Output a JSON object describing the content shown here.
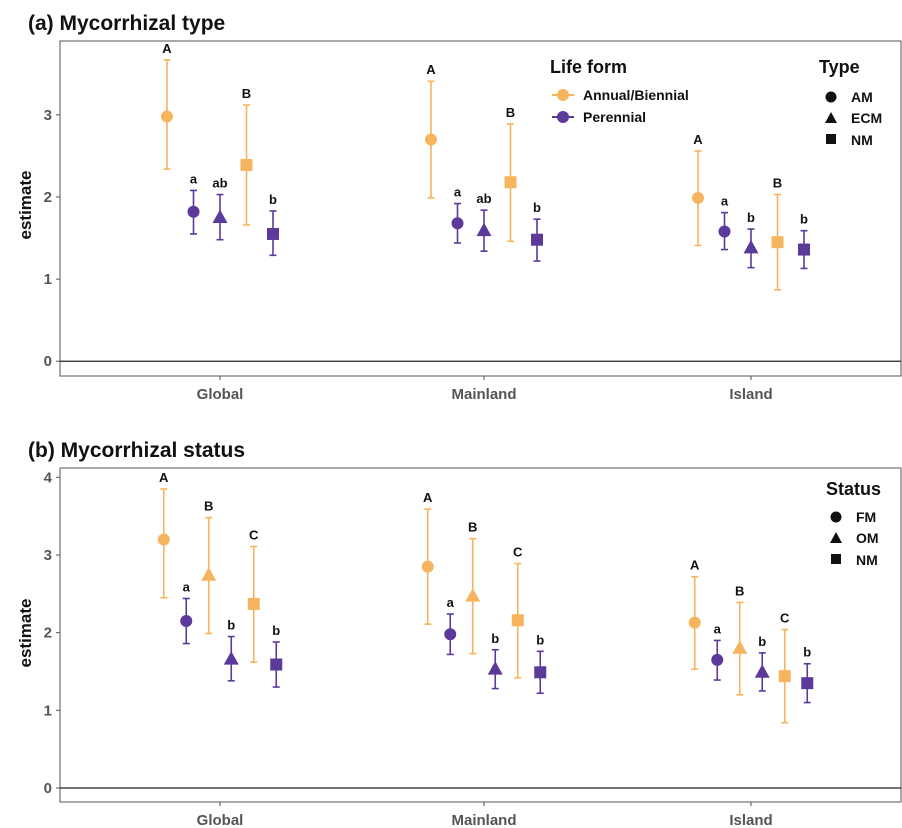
{
  "colors": {
    "annual": "#f6b45e",
    "perennial": "#5b3a9a",
    "axis": "#555555",
    "zero": "#222222"
  },
  "chart_data": [
    {
      "type": "scatter",
      "title": "(a) Mycorrhizal type",
      "ylabel": "estimate",
      "xlabel": "",
      "ylim": [
        -0.18,
        3.9
      ],
      "yticks": [
        "0",
        "1",
        "2",
        "3"
      ],
      "categories": [
        "Global",
        "Mainland",
        "Island"
      ],
      "legend_lifeform": {
        "title": "Life form",
        "items": [
          "Annual/Biennial",
          "Perennial"
        ]
      },
      "legend_shape": {
        "title": "Type",
        "items": [
          "AM",
          "ECM",
          "NM"
        ]
      },
      "points": [
        {
          "category": "Global",
          "lifeform": "Annual/Biennial",
          "shape": "AM",
          "estimate": 2.98,
          "lower": 2.34,
          "upper": 3.67,
          "label": "A"
        },
        {
          "category": "Global",
          "lifeform": "Perennial",
          "shape": "AM",
          "estimate": 1.82,
          "lower": 1.55,
          "upper": 2.08,
          "label": "a"
        },
        {
          "category": "Global",
          "lifeform": "Perennial",
          "shape": "ECM",
          "estimate": 1.75,
          "lower": 1.48,
          "upper": 2.03,
          "label": "ab"
        },
        {
          "category": "Global",
          "lifeform": "Annual/Biennial",
          "shape": "NM",
          "estimate": 2.39,
          "lower": 1.66,
          "upper": 3.12,
          "label": "B"
        },
        {
          "category": "Global",
          "lifeform": "Perennial",
          "shape": "NM",
          "estimate": 1.55,
          "lower": 1.29,
          "upper": 1.83,
          "label": "b"
        },
        {
          "category": "Mainland",
          "lifeform": "Annual/Biennial",
          "shape": "AM",
          "estimate": 2.7,
          "lower": 1.99,
          "upper": 3.41,
          "label": "A"
        },
        {
          "category": "Mainland",
          "lifeform": "Perennial",
          "shape": "AM",
          "estimate": 1.68,
          "lower": 1.44,
          "upper": 1.92,
          "label": "a"
        },
        {
          "category": "Mainland",
          "lifeform": "Perennial",
          "shape": "ECM",
          "estimate": 1.59,
          "lower": 1.34,
          "upper": 1.84,
          "label": "ab"
        },
        {
          "category": "Mainland",
          "lifeform": "Annual/Biennial",
          "shape": "NM",
          "estimate": 2.18,
          "lower": 1.46,
          "upper": 2.89,
          "label": "B"
        },
        {
          "category": "Mainland",
          "lifeform": "Perennial",
          "shape": "NM",
          "estimate": 1.48,
          "lower": 1.22,
          "upper": 1.73,
          "label": "b"
        },
        {
          "category": "Island",
          "lifeform": "Annual/Biennial",
          "shape": "AM",
          "estimate": 1.99,
          "lower": 1.41,
          "upper": 2.56,
          "label": "A"
        },
        {
          "category": "Island",
          "lifeform": "Perennial",
          "shape": "AM",
          "estimate": 1.58,
          "lower": 1.36,
          "upper": 1.81,
          "label": "a"
        },
        {
          "category": "Island",
          "lifeform": "Perennial",
          "shape": "ECM",
          "estimate": 1.38,
          "lower": 1.14,
          "upper": 1.61,
          "label": "b"
        },
        {
          "category": "Island",
          "lifeform": "Annual/Biennial",
          "shape": "NM",
          "estimate": 1.45,
          "lower": 0.87,
          "upper": 2.03,
          "label": "B"
        },
        {
          "category": "Island",
          "lifeform": "Perennial",
          "shape": "NM",
          "estimate": 1.36,
          "lower": 1.13,
          "upper": 1.59,
          "label": "b"
        }
      ]
    },
    {
      "type": "scatter",
      "title": "(b) Mycorrhizal status",
      "ylabel": "estimate",
      "xlabel": "",
      "ylim": [
        -0.18,
        4.12
      ],
      "yticks": [
        "0",
        "1",
        "2",
        "3",
        "4"
      ],
      "categories": [
        "Global",
        "Mainland",
        "Island"
      ],
      "legend_shape": {
        "title": "Status",
        "items": [
          "FM",
          "OM",
          "NM"
        ]
      },
      "points": [
        {
          "category": "Global",
          "lifeform": "Annual/Biennial",
          "shape": "FM",
          "estimate": 3.2,
          "lower": 2.45,
          "upper": 3.85,
          "label": "A"
        },
        {
          "category": "Global",
          "lifeform": "Perennial",
          "shape": "FM",
          "estimate": 2.15,
          "lower": 1.86,
          "upper": 2.44,
          "label": "a"
        },
        {
          "category": "Global",
          "lifeform": "Annual/Biennial",
          "shape": "OM",
          "estimate": 2.74,
          "lower": 1.99,
          "upper": 3.48,
          "label": "B"
        },
        {
          "category": "Global",
          "lifeform": "Perennial",
          "shape": "OM",
          "estimate": 1.66,
          "lower": 1.38,
          "upper": 1.95,
          "label": "b"
        },
        {
          "category": "Global",
          "lifeform": "Annual/Biennial",
          "shape": "NM",
          "estimate": 2.37,
          "lower": 1.62,
          "upper": 3.11,
          "label": "C"
        },
        {
          "category": "Global",
          "lifeform": "Perennial",
          "shape": "NM",
          "estimate": 1.59,
          "lower": 1.3,
          "upper": 1.88,
          "label": "b"
        },
        {
          "category": "Mainland",
          "lifeform": "Annual/Biennial",
          "shape": "FM",
          "estimate": 2.85,
          "lower": 2.11,
          "upper": 3.59,
          "label": "A"
        },
        {
          "category": "Mainland",
          "lifeform": "Perennial",
          "shape": "FM",
          "estimate": 1.98,
          "lower": 1.72,
          "upper": 2.24,
          "label": "a"
        },
        {
          "category": "Mainland",
          "lifeform": "Annual/Biennial",
          "shape": "OM",
          "estimate": 2.47,
          "lower": 1.73,
          "upper": 3.21,
          "label": "B"
        },
        {
          "category": "Mainland",
          "lifeform": "Perennial",
          "shape": "OM",
          "estimate": 1.53,
          "lower": 1.28,
          "upper": 1.78,
          "label": "b"
        },
        {
          "category": "Mainland",
          "lifeform": "Annual/Biennial",
          "shape": "NM",
          "estimate": 2.16,
          "lower": 1.42,
          "upper": 2.89,
          "label": "C"
        },
        {
          "category": "Mainland",
          "lifeform": "Perennial",
          "shape": "NM",
          "estimate": 1.49,
          "lower": 1.22,
          "upper": 1.76,
          "label": "b"
        },
        {
          "category": "Island",
          "lifeform": "Annual/Biennial",
          "shape": "FM",
          "estimate": 2.13,
          "lower": 1.53,
          "upper": 2.72,
          "label": "A"
        },
        {
          "category": "Island",
          "lifeform": "Perennial",
          "shape": "FM",
          "estimate": 1.65,
          "lower": 1.39,
          "upper": 1.9,
          "label": "a"
        },
        {
          "category": "Island",
          "lifeform": "Annual/Biennial",
          "shape": "OM",
          "estimate": 1.8,
          "lower": 1.2,
          "upper": 2.39,
          "label": "B"
        },
        {
          "category": "Island",
          "lifeform": "Perennial",
          "shape": "OM",
          "estimate": 1.49,
          "lower": 1.25,
          "upper": 1.74,
          "label": "b"
        },
        {
          "category": "Island",
          "lifeform": "Annual/Biennial",
          "shape": "NM",
          "estimate": 1.44,
          "lower": 0.84,
          "upper": 2.04,
          "label": "C"
        },
        {
          "category": "Island",
          "lifeform": "Perennial",
          "shape": "NM",
          "estimate": 1.35,
          "lower": 1.1,
          "upper": 1.6,
          "label": "b"
        }
      ]
    }
  ]
}
